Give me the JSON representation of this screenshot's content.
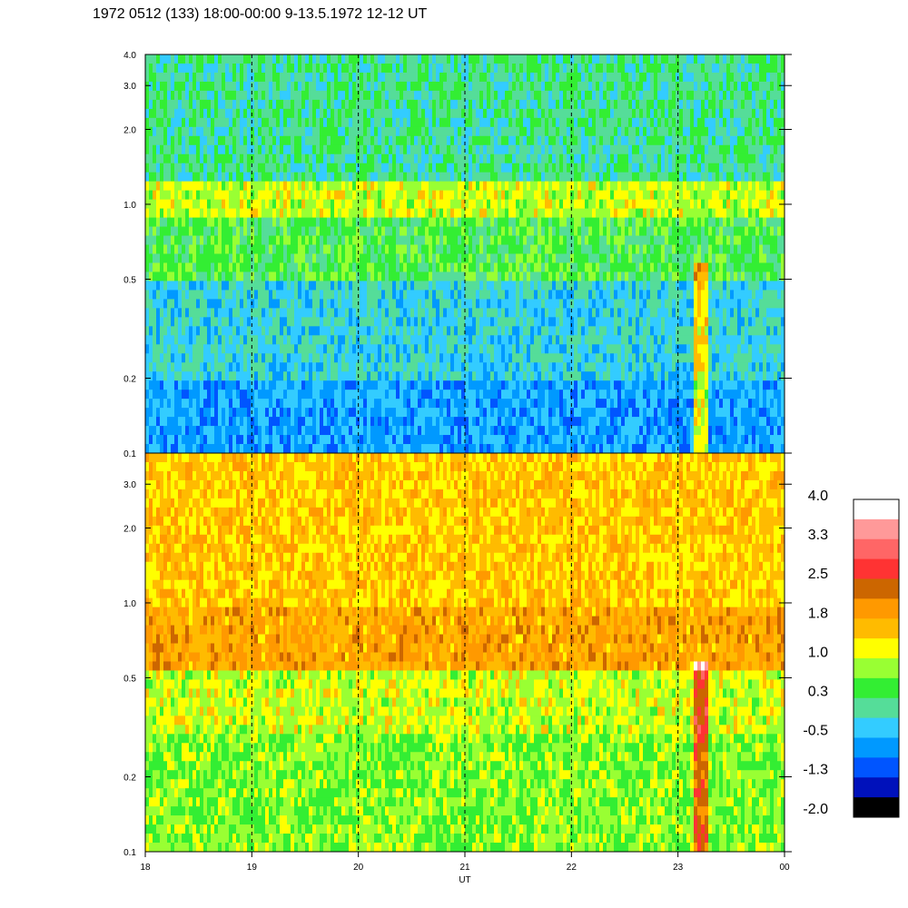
{
  "title": "1972 0512 (133) 18:00-00:00 9-13.5.1972  12-12 UT",
  "chart_data": {
    "type": "heatmap",
    "xlabel": "UT",
    "x_ticks": [
      "18",
      "19",
      "20",
      "21",
      "22",
      "23",
      "00"
    ],
    "x_range": [
      18,
      24
    ],
    "y_scale": "log",
    "y_range": [
      0.1,
      4.0
    ],
    "y_ticks": [
      "0.1",
      "0.2",
      "0.5",
      "1.0",
      "2.0",
      "3.0",
      "4.0"
    ],
    "y_tick_values": [
      0.1,
      0.2,
      0.5,
      1.0,
      2.0,
      3.0,
      4.0
    ],
    "grid_x": "dashed vertical lines at each hour",
    "panels": [
      {
        "name": "upper",
        "description_bands": [
          {
            "y_from": 0.1,
            "y_to": 0.2,
            "level": -0.6
          },
          {
            "y_from": 0.2,
            "y_to": 0.5,
            "level": -0.2
          },
          {
            "y_from": 0.5,
            "y_to": 0.85,
            "level": 0.4
          },
          {
            "y_from": 0.85,
            "y_to": 1.2,
            "level": 1.0
          },
          {
            "y_from": 1.2,
            "y_to": 4.0,
            "level": 0.1
          }
        ]
      },
      {
        "name": "lower",
        "description_bands": [
          {
            "y_from": 0.1,
            "y_to": 0.3,
            "level": 0.7
          },
          {
            "y_from": 0.3,
            "y_to": 0.55,
            "level": 1.0
          },
          {
            "y_from": 0.55,
            "y_to": 1.0,
            "level": 1.8
          },
          {
            "y_from": 1.0,
            "y_to": 4.0,
            "level": 1.5
          }
        ]
      }
    ],
    "colorbar": {
      "labels": [
        "4.0",
        "3.3",
        "2.5",
        "1.8",
        "1.0",
        "0.3",
        "-0.5",
        "-1.3",
        "-2.0"
      ],
      "colors": [
        "#ffffff",
        "#ff9999",
        "#ff6666",
        "#ff3333",
        "#cc6600",
        "#ff9900",
        "#ffbb00",
        "#ffff00",
        "#99ff33",
        "#33ee33",
        "#55dd99",
        "#33ccff",
        "#0099ff",
        "#0055ff",
        "#0011bb",
        "#000000"
      ]
    }
  }
}
